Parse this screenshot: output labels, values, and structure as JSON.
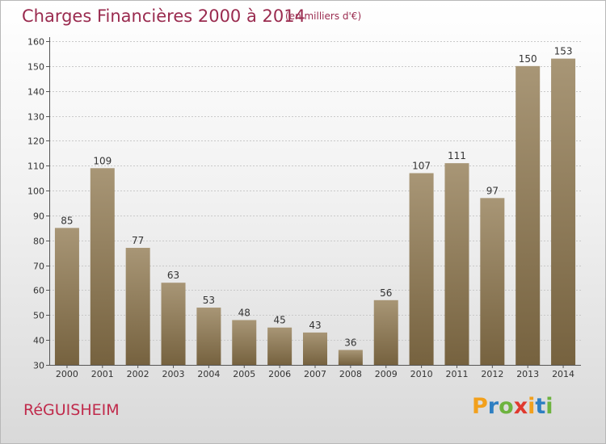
{
  "header": {
    "title": "Charges Financières 2000 à 2014",
    "subtitle": "(en milliers d'€)"
  },
  "footer": {
    "commune": "RéGUISHEIM",
    "logo": {
      "letters": [
        "P",
        "r",
        "o",
        "x",
        "i",
        "t",
        "i"
      ],
      "colors": [
        "#f2a01c",
        "#2e7fc2",
        "#6db33f",
        "#e0392e",
        "#f2a01c",
        "#2e7fc2",
        "#6db33f"
      ]
    }
  },
  "chart_data": {
    "type": "bar",
    "categories": [
      "2000",
      "2001",
      "2002",
      "2003",
      "2004",
      "2005",
      "2006",
      "2007",
      "2008",
      "2009",
      "2010",
      "2011",
      "2012",
      "2013",
      "2014"
    ],
    "values": [
      85,
      109,
      77,
      63,
      53,
      48,
      45,
      43,
      36,
      56,
      107,
      111,
      97,
      150,
      153
    ],
    "ylim": [
      30,
      160
    ],
    "yticks": [
      30,
      40,
      50,
      60,
      70,
      80,
      90,
      100,
      110,
      120,
      130,
      140,
      150,
      160
    ],
    "grid": true,
    "bar_color_top": "#a89676",
    "bar_color_bottom": "#76623f"
  }
}
